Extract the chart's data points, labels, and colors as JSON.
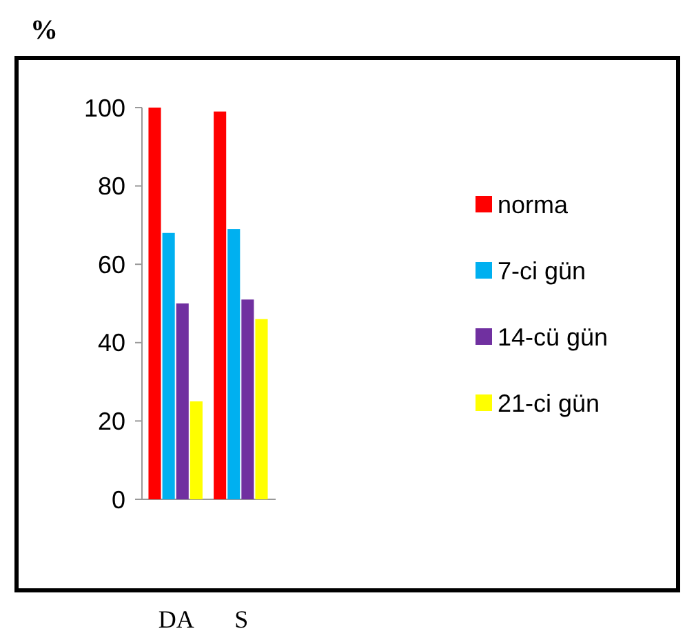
{
  "chart_data": {
    "type": "bar",
    "ylabel": "%",
    "categories": [
      "DA",
      "S"
    ],
    "series": [
      {
        "name": "norma",
        "color": "#ff0000",
        "values": [
          100,
          99
        ]
      },
      {
        "name": "7-ci gün",
        "color": "#00b0f0",
        "values": [
          68,
          69
        ]
      },
      {
        "name": "14-cü gün",
        "color": "#7030a0",
        "values": [
          50,
          51
        ]
      },
      {
        "name": "21-ci gün",
        "color": "#ffff00",
        "values": [
          25,
          46
        ]
      }
    ],
    "ylim": [
      0,
      100
    ],
    "yticks": [
      0,
      20,
      40,
      60,
      80,
      100
    ],
    "grid": false,
    "legend": "right"
  }
}
